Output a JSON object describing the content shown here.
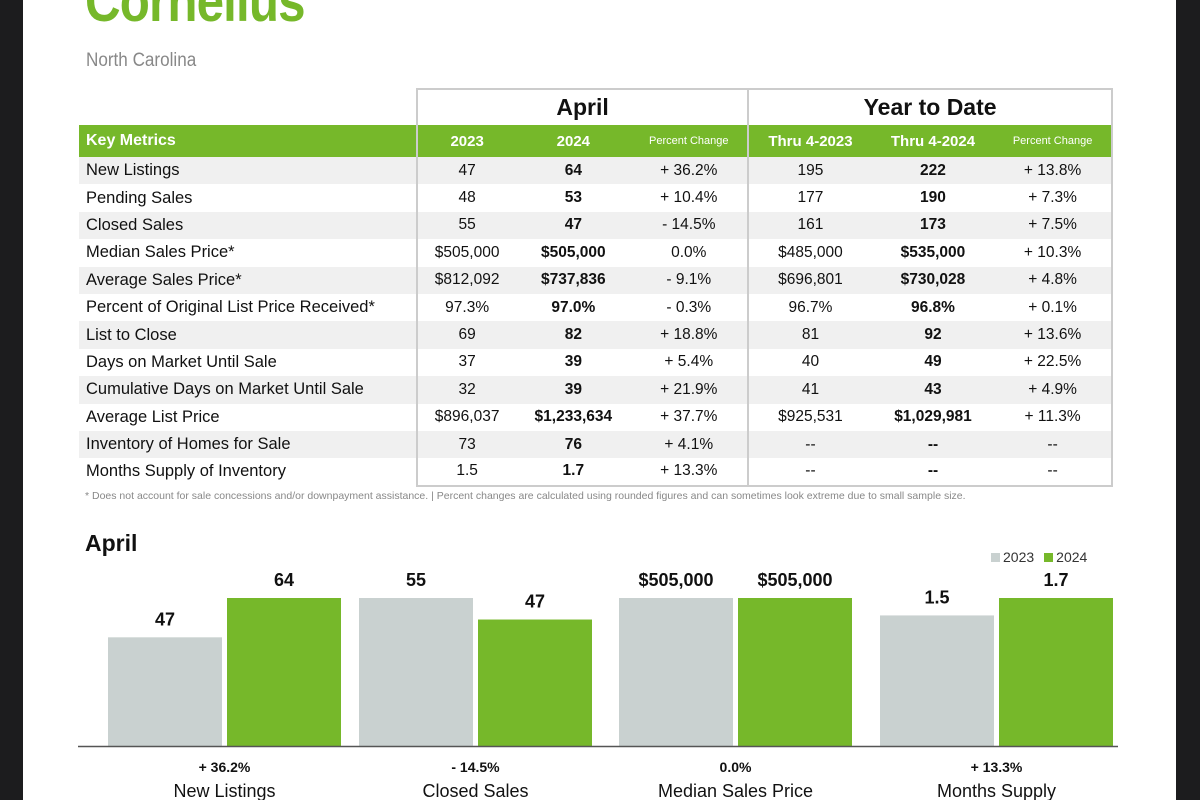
{
  "header": {
    "title": "Cornelius",
    "subtitle": "North Carolina"
  },
  "table": {
    "group_april": "April",
    "group_ytd": "Year to Date",
    "columns": [
      "Key Metrics",
      "2023",
      "2024",
      "Percent Change",
      "Thru 4-2023",
      "Thru 4-2024",
      "Percent Change"
    ],
    "rows": [
      [
        "New Listings",
        "47",
        "64",
        "+ 36.2%",
        "195",
        "222",
        "+ 13.8%"
      ],
      [
        "Pending Sales",
        "48",
        "53",
        "+ 10.4%",
        "177",
        "190",
        "+ 7.3%"
      ],
      [
        "Closed Sales",
        "55",
        "47",
        "- 14.5%",
        "161",
        "173",
        "+ 7.5%"
      ],
      [
        "Median Sales Price*",
        "$505,000",
        "$505,000",
        "0.0%",
        "$485,000",
        "$535,000",
        "+ 10.3%"
      ],
      [
        "Average Sales Price*",
        "$812,092",
        "$737,836",
        "- 9.1%",
        "$696,801",
        "$730,028",
        "+ 4.8%"
      ],
      [
        "Percent of Original List Price Received*",
        "97.3%",
        "97.0%",
        "- 0.3%",
        "96.7%",
        "96.8%",
        "+ 0.1%"
      ],
      [
        "List to Close",
        "69",
        "82",
        "+ 18.8%",
        "81",
        "92",
        "+ 13.6%"
      ],
      [
        "Days on Market Until Sale",
        "37",
        "39",
        "+ 5.4%",
        "40",
        "49",
        "+ 22.5%"
      ],
      [
        "Cumulative Days on Market Until Sale",
        "32",
        "39",
        "+ 21.9%",
        "41",
        "43",
        "+ 4.9%"
      ],
      [
        "Average List Price",
        "$896,037",
        "$1,233,634",
        "+ 37.7%",
        "$925,531",
        "$1,029,981",
        "+ 11.3%"
      ],
      [
        "Inventory of Homes for Sale",
        "73",
        "76",
        "+ 4.1%",
        "--",
        "--",
        "--"
      ],
      [
        "Months Supply of Inventory",
        "1.5",
        "1.7",
        "+ 13.3%",
        "--",
        "--",
        "--"
      ]
    ],
    "footnote": "* Does not account for sale concessions and/or downpayment assistance.  |  Percent changes are calculated using rounded figures and can sometimes look extreme due to small sample size."
  },
  "chart_data": {
    "type": "bar",
    "title": "April",
    "categories": [
      "New Listings",
      "Closed Sales",
      "Median Sales Price",
      "Months Supply"
    ],
    "change_labels": [
      "+ 36.2%",
      "- 14.5%",
      "0.0%",
      "+ 13.3%"
    ],
    "series": [
      {
        "name": "2023",
        "values": [
          47,
          55,
          505000,
          1.5
        ],
        "labels": [
          "47",
          "55",
          "$505,000",
          "1.5"
        ],
        "color": "#c9d1d0"
      },
      {
        "name": "2024",
        "values": [
          64,
          47,
          505000,
          1.7
        ],
        "labels": [
          "64",
          "47",
          "$505,000",
          "1.7"
        ],
        "color": "#76b82a"
      }
    ],
    "scale": "each category scaled independently"
  }
}
